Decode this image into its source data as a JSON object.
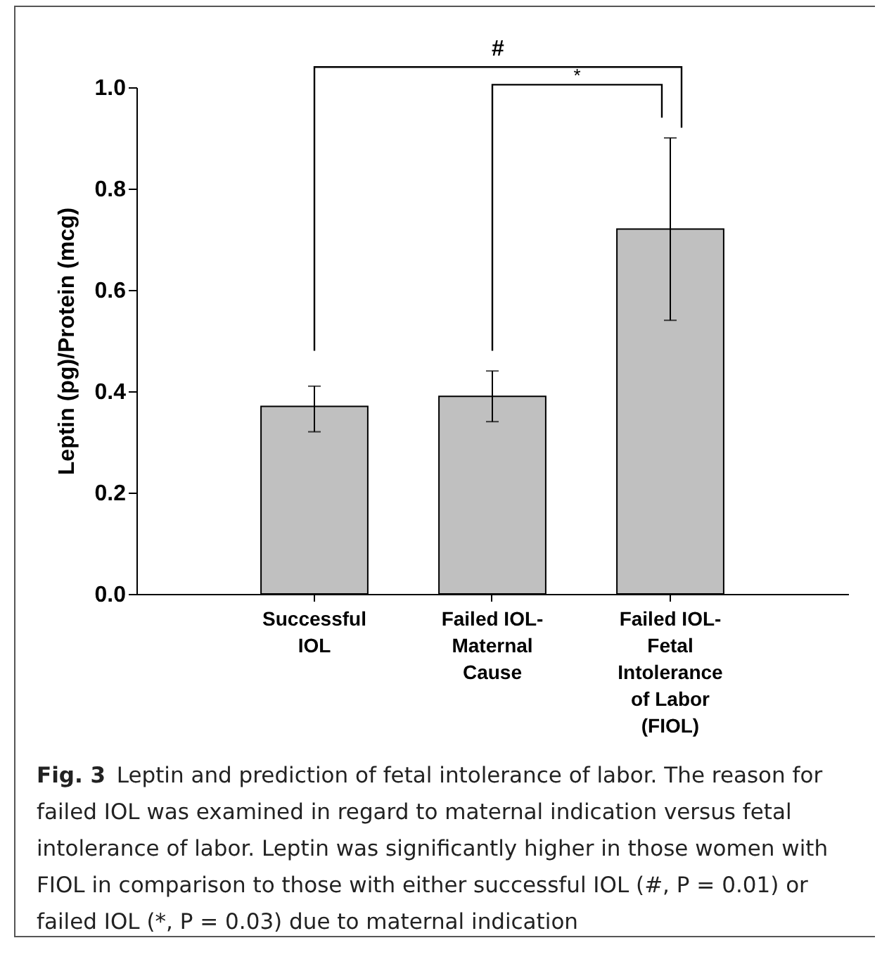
{
  "chart_data": {
    "type": "bar",
    "categories": [
      "Successful IOL",
      "Failed IOL-Maternal Cause",
      "Failed IOL-Fetal Intolerance of Labor (FIOL)"
    ],
    "values": [
      0.37,
      0.39,
      0.72
    ],
    "errors": [
      [
        0.32,
        0.41
      ],
      [
        0.34,
        0.44
      ],
      [
        0.54,
        0.9
      ]
    ],
    "color": "#c0c0c0",
    "ylabel": "Leptin (pg)/Protein (mcg)",
    "ylim": [
      0,
      1
    ],
    "yticks": [
      {
        "value": 0,
        "label": "0.0"
      },
      0.2,
      0.4,
      0.6,
      0.8,
      {
        "value": 1,
        "label": "1.0"
      }
    ],
    "annotations": [
      "#",
      "*",
      "Fig. 3  Leptin and prediction of fetal intolerance of labor. The reason for failed IOL was examined in regard to maternal indication versus fetal intolerance of labor. Leptin was significantly higher in those women with FIOL in comparison to those with either successful IOL (#, P = 0.01) or failed IOL (*, P = 0.03) due to maternal indication"
    ],
    "grid": false
  }
}
